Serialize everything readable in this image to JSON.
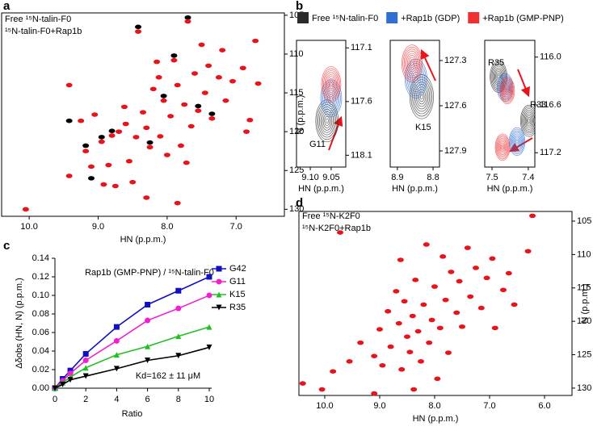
{
  "chart_data": [
    {
      "type": "nmr",
      "panel": "a",
      "xlabel": "HN (p.p.m.)",
      "ylabel": "N (p.p.m.)",
      "xlim": [
        10.4,
        6.3
      ],
      "ylim": [
        104.7,
        130.9
      ],
      "xticks": [
        {
          "value": 10,
          "label": "10.0"
        },
        {
          "value": 9,
          "label": "9.0"
        },
        {
          "value": 8,
          "label": "8.0"
        },
        {
          "value": 7,
          "label": "7.0"
        }
      ],
      "yticks": [
        105,
        110,
        115,
        120,
        125,
        130
      ],
      "series": [
        {
          "name": "Free ¹⁵N-talin-F0",
          "color": "#000000",
          "x": [
            9.42,
            9.18,
            8.95,
            8.8,
            8.42,
            8.05,
            7.7,
            7.55,
            7.35,
            9.1,
            8.25,
            7.9
          ],
          "y": [
            118.6,
            121.8,
            120.7,
            119.9,
            106.5,
            115.4,
            105.3,
            116.7,
            117.7,
            126.0,
            121.4,
            110.2
          ]
        },
        {
          "name": "¹⁵N-talin-F0+Rap1b",
          "color": "#e8141b",
          "x": [
            10.05,
            9.42,
            9.42,
            9.18,
            9.1,
            9.05,
            8.95,
            8.92,
            8.85,
            8.8,
            8.7,
            8.62,
            8.55,
            8.5,
            8.45,
            8.42,
            8.35,
            8.3,
            8.25,
            8.2,
            8.15,
            8.1,
            8.05,
            8.0,
            7.95,
            7.9,
            7.85,
            7.8,
            7.75,
            7.7,
            7.65,
            7.6,
            7.55,
            7.5,
            7.45,
            7.4,
            7.35,
            7.25,
            7.2,
            7.15,
            7.05,
            6.9,
            6.85,
            6.8,
            6.72,
            6.68,
            8.75,
            8.3,
            7.85,
            9.25,
            8.6,
            8.12,
            7.72
          ],
          "y": [
            130.0,
            114.0,
            125.7,
            122.5,
            124.5,
            117.8,
            121.3,
            126.8,
            124.3,
            120.5,
            120.0,
            116.8,
            123.8,
            126.5,
            120.7,
            107.1,
            117.5,
            119.5,
            122.0,
            114.5,
            111.0,
            120.6,
            116.0,
            123.0,
            118.0,
            110.8,
            114.0,
            121.8,
            116.5,
            105.8,
            119.3,
            112.5,
            117.3,
            108.8,
            115.0,
            111.5,
            118.3,
            113.0,
            109.5,
            116.0,
            113.5,
            111.8,
            120.0,
            118.5,
            108.3,
            113.8,
            127.0,
            128.5,
            129.2,
            118.6,
            119.0,
            113.0,
            124.0
          ]
        }
      ]
    },
    {
      "type": "contour",
      "panel": "b",
      "series": [
        {
          "name": "Free ¹⁵N-talin-F0",
          "color": "#2b2b2b"
        },
        {
          "name": "+Rap1b (GDP)",
          "color": "#2f6fd0"
        },
        {
          "name": "+Rap1b (GMP-PNP)",
          "color": "#f03030"
        }
      ],
      "panels": [
        {
          "xlabel": "HN (p.p.m.)",
          "annotations": [
            "G11"
          ],
          "xlim": [
            9.133,
            9.015
          ],
          "ylim": [
            117.03,
            118.21
          ],
          "xticks": [
            {
              "value": 9.1,
              "label": "9.10"
            },
            9.05
          ],
          "yticks": [
            117.1,
            117.6,
            118.1
          ],
          "series": [
            {
              "x": [
                9.06
              ],
              "y": [
                117.78
              ]
            },
            {
              "x": [
                9.05
              ],
              "y": [
                117.57
              ]
            },
            {
              "x": [
                9.05
              ],
              "y": [
                117.44
              ]
            }
          ]
        },
        {
          "xlabel": "HN (p.p.m.)",
          "annotations": [
            "K15"
          ],
          "xlim": [
            8.92,
            8.782
          ],
          "ylim": [
            127.166,
            128.007
          ],
          "xticks": [
            8.9,
            8.8
          ],
          "yticks": [
            127.3,
            127.6,
            127.9
          ],
          "series": [
            {
              "x": [
                8.832
              ],
              "y": [
                127.54
              ]
            },
            {
              "x": [
                8.848
              ],
              "y": [
                127.42
              ]
            },
            {
              "x": [
                8.859
              ],
              "y": [
                127.32
              ]
            }
          ]
        },
        {
          "xlabel": "HN (p.p.m.)",
          "annotations": [
            "R35",
            "R33"
          ],
          "xlim": [
            7.52,
            7.382
          ],
          "ylim": [
            115.79,
            117.38
          ],
          "xticks": [
            7.5,
            7.4
          ],
          "yticks": [
            {
              "value": 116,
              "label": "116.0"
            },
            116.6,
            117.2
          ],
          "series": [
            {
              "x": [
                7.482,
                7.398
              ],
              "y": [
                116.245,
                116.8
              ]
            },
            {
              "x": [
                7.464,
                7.431
              ],
              "y": [
                116.38,
                117.06
              ]
            },
            {
              "x": [
                7.458,
                7.471
              ],
              "y": [
                116.42,
                117.13
              ]
            }
          ]
        }
      ]
    },
    {
      "type": "line",
      "panel": "c",
      "title": "Rap1b (GMP-PNP) / ¹⁵N-talin-F0",
      "xlabel": "Ratio",
      "ylabel": "Δδobs (HN, N) (p.p.m.)",
      "annotation": "Kd=162 ± 11 μM",
      "x": [
        0,
        0.5,
        1,
        2,
        4,
        6,
        8,
        10
      ],
      "xlim": [
        0,
        10
      ],
      "ylim": [
        0,
        0.14
      ],
      "xticks": [
        0,
        2,
        4,
        6,
        8,
        10
      ],
      "yticks": [
        {
          "value": 0,
          "label": "0.00"
        },
        0.02,
        0.04,
        0.06,
        0.08,
        {
          "value": 0.1,
          "label": "0.10"
        },
        0.12,
        0.14
      ],
      "series": [
        {
          "name": "G42",
          "color": "#1010c0",
          "marker": "square",
          "values": [
            0,
            0.01,
            0.019,
            0.037,
            0.066,
            0.09,
            0.105,
            0.12
          ]
        },
        {
          "name": "G11",
          "color": "#f020d0",
          "marker": "circle",
          "values": [
            0,
            0.008,
            0.016,
            0.03,
            0.051,
            0.073,
            0.086,
            0.1
          ]
        },
        {
          "name": "K15",
          "color": "#20c020",
          "marker": "triangle",
          "values": [
            0,
            0.006,
            0.012,
            0.022,
            0.036,
            0.045,
            0.056,
            0.066
          ]
        },
        {
          "name": "R35",
          "color": "#000000",
          "marker": "down-triangle",
          "values": [
            0,
            0.004,
            0.009,
            0.013,
            0.021,
            0.03,
            0.035,
            0.044
          ]
        }
      ]
    },
    {
      "type": "nmr",
      "panel": "d",
      "xlabel": "HN (p.p.m.)",
      "ylabel": "N (p.p.m.)",
      "xlim": [
        10.47,
        5.5
      ],
      "ylim": [
        103.55,
        131.1
      ],
      "xticks": [
        {
          "value": 10,
          "label": "10.0"
        },
        {
          "value": 9,
          "label": "9.0"
        },
        {
          "value": 8,
          "label": "8.0"
        },
        {
          "value": 7,
          "label": "7.0"
        },
        {
          "value": 6,
          "label": "6.0"
        }
      ],
      "yticks": [
        105,
        110,
        115,
        120,
        125,
        130
      ],
      "series": [
        {
          "name": "Free ¹⁵N-K2F0",
          "color": "#000000",
          "x": [],
          "y": []
        },
        {
          "name": "¹⁵N-K2F0+Rap1b",
          "color": "#e8141b",
          "x": [
            10.4,
            10.05,
            9.85,
            9.72,
            9.1,
            9.35,
            9.1,
            9.0,
            8.95,
            8.85,
            8.8,
            8.7,
            8.65,
            8.6,
            8.55,
            8.5,
            8.45,
            8.4,
            8.35,
            8.3,
            8.25,
            8.2,
            8.15,
            8.1,
            8.05,
            8.0,
            7.95,
            7.9,
            7.85,
            7.8,
            7.75,
            7.7,
            7.6,
            7.55,
            7.5,
            7.4,
            7.35,
            7.25,
            7.15,
            7.05,
            6.95,
            6.9,
            6.75,
            6.65,
            6.55,
            6.3,
            6.22,
            8.62,
            8.38,
            9.55
          ],
          "y": [
            129.3,
            130.2,
            127.5,
            106.7,
            130.8,
            123.2,
            125.2,
            121.2,
            126.6,
            118.5,
            123.8,
            115.5,
            120.3,
            127.2,
            117.0,
            122.3,
            124.6,
            119.2,
            113.8,
            121.5,
            126.0,
            117.5,
            108.5,
            123.2,
            119.8,
            114.8,
            128.6,
            121.0,
            110.3,
            116.8,
            124.7,
            112.6,
            118.7,
            114.0,
            120.8,
            109.0,
            116.3,
            112.0,
            118.0,
            113.5,
            110.6,
            121.0,
            115.3,
            112.8,
            117.5,
            109.5,
            104.2,
            110.8,
            130.2,
            126.0
          ]
        }
      ]
    }
  ]
}
